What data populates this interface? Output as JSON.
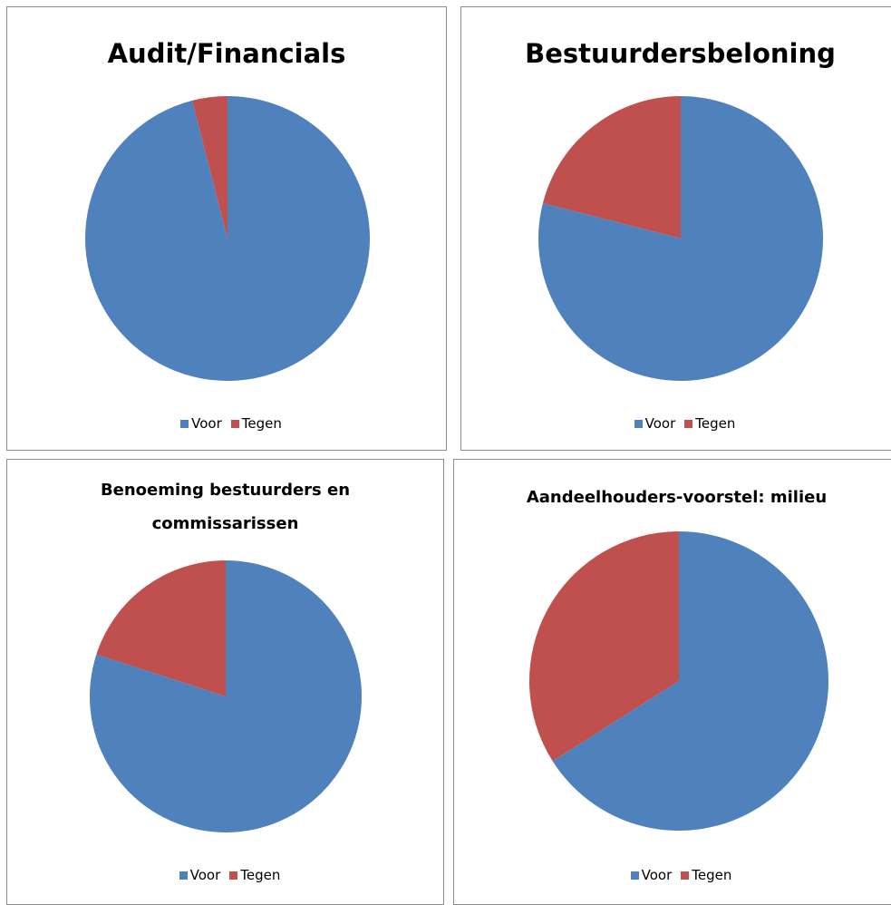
{
  "chart_data": [
    {
      "type": "pie",
      "title": "Audit/Financials",
      "categories": [
        "Voor",
        "Tegen"
      ],
      "values": [
        96,
        4
      ],
      "colors": [
        "#4f81bd",
        "#c0504d"
      ]
    },
    {
      "type": "pie",
      "title": "Bestuurdersbeloning",
      "categories": [
        "Voor",
        "Tegen"
      ],
      "values": [
        79,
        21
      ],
      "colors": [
        "#4f81bd",
        "#c0504d"
      ]
    },
    {
      "type": "pie",
      "title": "Benoeming bestuurders en commissarissen",
      "categories": [
        "Voor",
        "Tegen"
      ],
      "values": [
        80,
        20
      ],
      "colors": [
        "#4f81bd",
        "#c0504d"
      ]
    },
    {
      "type": "pie",
      "title": "Aandeelhouders-voorstel: milieu",
      "categories": [
        "Voor",
        "Tegen"
      ],
      "values": [
        66,
        34
      ],
      "colors": [
        "#4f81bd",
        "#c0504d"
      ]
    }
  ]
}
